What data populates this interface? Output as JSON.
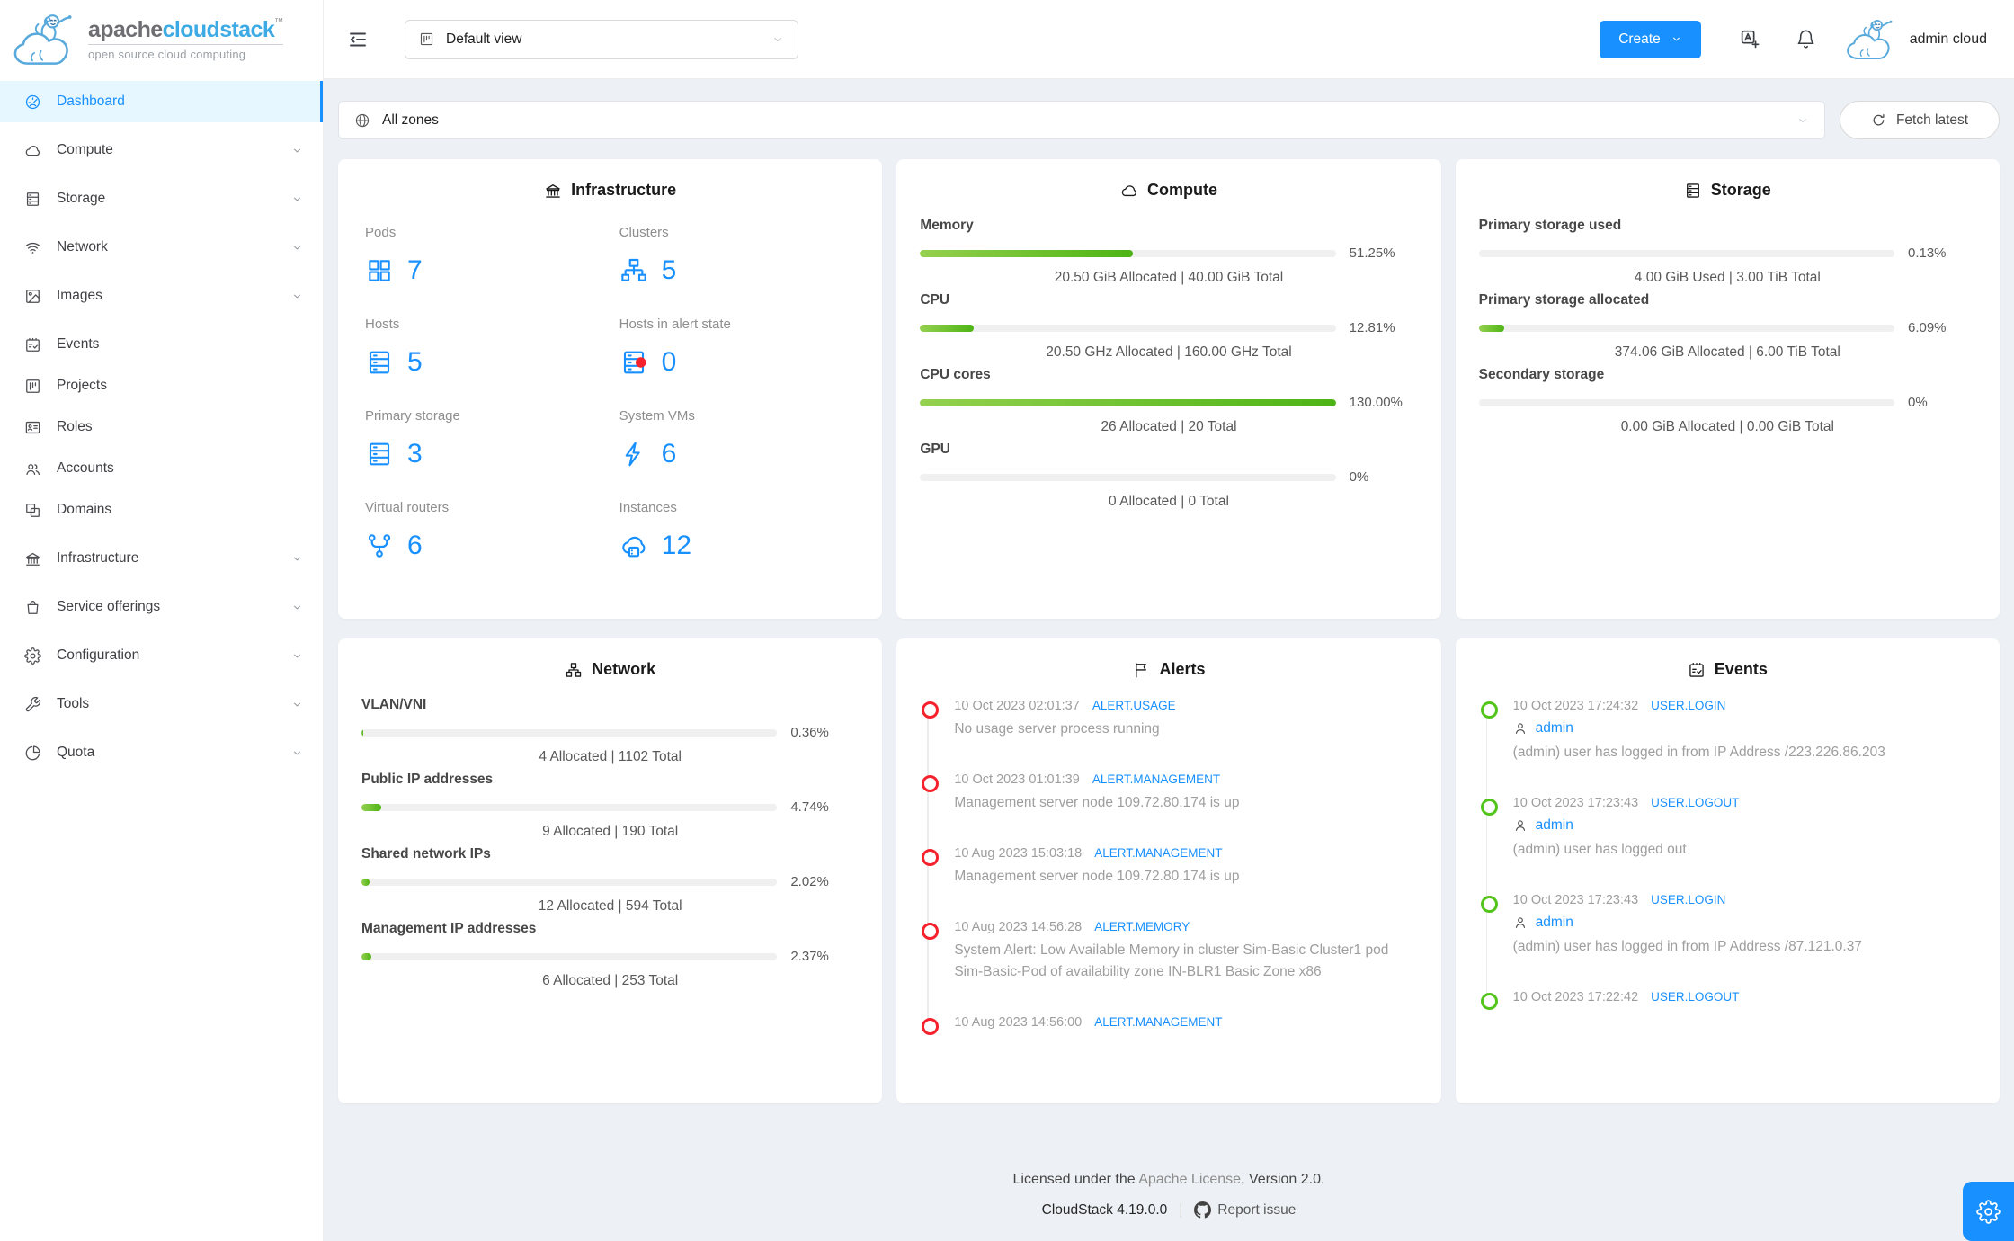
{
  "brand": {
    "name_gray": "apache",
    "name_blue": "cloudstack",
    "trademark": "™",
    "tagline": "open source cloud computing"
  },
  "header": {
    "view_select": "Default view",
    "create_label": "Create",
    "user_name": "admin cloud",
    "icons": {
      "collapse": "menu-fold-icon",
      "view": "project-icon",
      "translate": "translate-icon",
      "notifications": "bell-icon",
      "avatar": "cloudmonkey-icon"
    }
  },
  "zonebar": {
    "zone_select": "All zones",
    "zone_icon": "globe-icon",
    "fetch_label": "Fetch latest",
    "fetch_icon": "reload-icon"
  },
  "sidebar": {
    "items": [
      {
        "label": "Dashboard",
        "icon": "dashboard-icon",
        "active": true,
        "chevron": false
      },
      {
        "label": "Compute",
        "icon": "cloud-icon",
        "chevron": true
      },
      {
        "label": "Storage",
        "icon": "database-icon",
        "chevron": true
      },
      {
        "label": "Network",
        "icon": "wifi-icon",
        "chevron": true
      },
      {
        "label": "Images",
        "icon": "picture-icon",
        "chevron": true
      },
      {
        "label": "Events",
        "icon": "schedule-icon",
        "chevron": false
      },
      {
        "label": "Projects",
        "icon": "project-icon",
        "chevron": false
      },
      {
        "label": "Roles",
        "icon": "idcard-icon",
        "chevron": false
      },
      {
        "label": "Accounts",
        "icon": "team-icon",
        "chevron": false
      },
      {
        "label": "Domains",
        "icon": "block-icon",
        "chevron": false
      },
      {
        "label": "Infrastructure",
        "icon": "bank-icon",
        "chevron": true
      },
      {
        "label": "Service offerings",
        "icon": "shopping-icon",
        "chevron": true
      },
      {
        "label": "Configuration",
        "icon": "setting-icon",
        "chevron": true
      },
      {
        "label": "Tools",
        "icon": "tool-icon",
        "chevron": true
      },
      {
        "label": "Quota",
        "icon": "pie-chart-icon",
        "chevron": true
      }
    ]
  },
  "cards": {
    "infrastructure": {
      "title": "Infrastructure",
      "icon": "bank-icon",
      "stats": [
        {
          "label": "Pods",
          "value": "7",
          "icon": "appstore-icon"
        },
        {
          "label": "Clusters",
          "value": "5",
          "icon": "cluster-icon"
        },
        {
          "label": "Hosts",
          "value": "5",
          "icon": "server-icon"
        },
        {
          "label": "Hosts in alert state",
          "value": "0",
          "icon": "server-alert-icon"
        },
        {
          "label": "Primary storage",
          "value": "3",
          "icon": "server-icon"
        },
        {
          "label": "System VMs",
          "value": "6",
          "icon": "thunderbolt-icon"
        },
        {
          "label": "Virtual routers",
          "value": "6",
          "icon": "fork-icon"
        },
        {
          "label": "Instances",
          "value": "12",
          "icon": "cloud-server-icon"
        }
      ]
    },
    "compute": {
      "title": "Compute",
      "icon": "cloud-icon",
      "meters": [
        {
          "label": "Memory",
          "percent": "51.25%",
          "width": 51.25,
          "detail": "20.50 GiB Allocated | 40.00 GiB Total"
        },
        {
          "label": "CPU",
          "percent": "12.81%",
          "width": 12.81,
          "detail": "20.50 GHz Allocated | 160.00 GHz Total"
        },
        {
          "label": "CPU cores",
          "percent": "130.00%",
          "width": 100,
          "detail": "26 Allocated | 20 Total"
        },
        {
          "label": "GPU",
          "percent": "0%",
          "width": 0,
          "detail": "0 Allocated | 0 Total"
        }
      ]
    },
    "storage": {
      "title": "Storage",
      "icon": "database-icon",
      "meters": [
        {
          "label": "Primary storage used",
          "percent": "0.13%",
          "width": 0.13,
          "detail": "4.00 GiB Used | 3.00 TiB Total"
        },
        {
          "label": "Primary storage allocated",
          "percent": "6.09%",
          "width": 6.09,
          "detail": "374.06 GiB Allocated | 6.00 TiB Total"
        },
        {
          "label": "Secondary storage",
          "percent": "0%",
          "width": 0,
          "detail": "0.00 GiB Allocated | 0.00 GiB Total"
        }
      ]
    },
    "network": {
      "title": "Network",
      "icon": "apartment-icon",
      "meters": [
        {
          "label": "VLAN/VNI",
          "percent": "0.36%",
          "width": 0.36,
          "detail": "4 Allocated | 1102 Total"
        },
        {
          "label": "Public IP addresses",
          "percent": "4.74%",
          "width": 4.74,
          "detail": "9 Allocated | 190 Total"
        },
        {
          "label": "Shared network IPs",
          "percent": "2.02%",
          "width": 2.02,
          "detail": "12 Allocated | 594 Total"
        },
        {
          "label": "Management IP addresses",
          "percent": "2.37%",
          "width": 2.37,
          "detail": "6 Allocated | 253 Total"
        }
      ]
    },
    "alerts": {
      "title": "Alerts",
      "icon": "flag-icon",
      "items": [
        {
          "time": "10 Oct 2023 02:01:37",
          "type": "ALERT.USAGE",
          "text": "No usage server process running"
        },
        {
          "time": "10 Oct 2023 01:01:39",
          "type": "ALERT.MANAGEMENT",
          "text": "Management server node 109.72.80.174 is up"
        },
        {
          "time": "10 Aug 2023 15:03:18",
          "type": "ALERT.MANAGEMENT",
          "text": "Management server node 109.72.80.174 is up"
        },
        {
          "time": "10 Aug 2023 14:56:28",
          "type": "ALERT.MEMORY",
          "text": "System Alert: Low Available Memory in cluster Sim-Basic Cluster1 pod Sim-Basic-Pod of availability zone IN-BLR1 Basic Zone x86"
        },
        {
          "time": "10 Aug 2023 14:56:00",
          "type": "ALERT.MANAGEMENT",
          "text": ""
        }
      ]
    },
    "events": {
      "title": "Events",
      "icon": "schedule-icon",
      "items": [
        {
          "time": "10 Oct 2023 17:24:32",
          "type": "USER.LOGIN",
          "user": "admin",
          "text": "(admin) user has logged in from IP Address /223.226.86.203"
        },
        {
          "time": "10 Oct 2023 17:23:43",
          "type": "USER.LOGOUT",
          "user": "admin",
          "text": "(admin) user has logged out"
        },
        {
          "time": "10 Oct 2023 17:23:43",
          "type": "USER.LOGIN",
          "user": "admin",
          "text": "(admin) user has logged in from IP Address /87.121.0.37"
        },
        {
          "time": "10 Oct 2023 17:22:42",
          "type": "USER.LOGOUT",
          "user": "",
          "text": ""
        }
      ]
    }
  },
  "footer": {
    "license_prefix": "Licensed under the ",
    "license_link": "Apache License",
    "license_suffix": ", Version 2.0.",
    "version": "CloudStack 4.19.0.0",
    "divider": "|",
    "report_label": "Report issue"
  },
  "colors": {
    "accent": "#1890ff",
    "progress_green_start": "#94d14f",
    "progress_green_end": "#4db414",
    "alert_red": "#f5222d",
    "event_green": "#52c41a",
    "active_item_bg": "#e6f7ff",
    "content_bg": "#edf0f4"
  }
}
